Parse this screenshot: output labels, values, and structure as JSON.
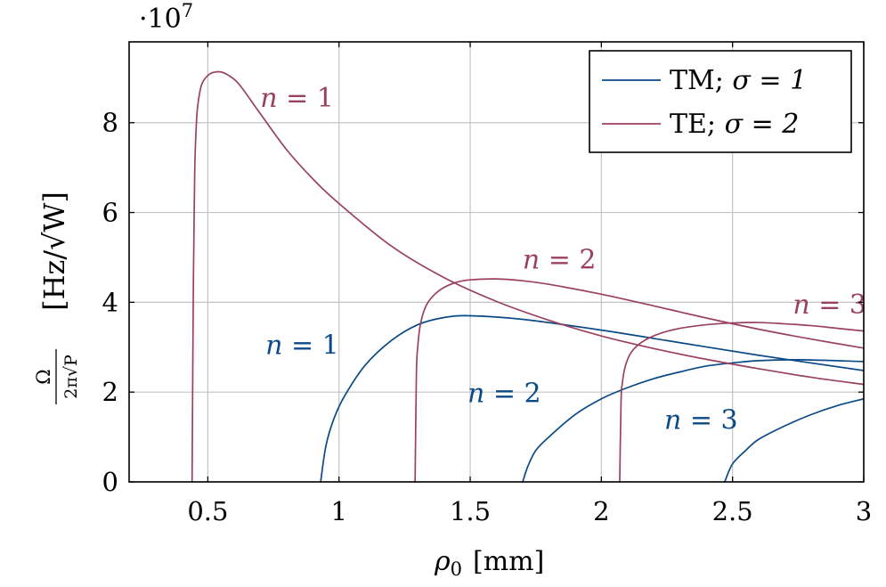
{
  "chart_data": {
    "type": "line",
    "exponent_label": "·10",
    "exponent_power": "7",
    "xlabel_symbol": "ρ",
    "xlabel_sub": "0",
    "xlabel_unit": "[mm]",
    "ylabel_num": "Ω",
    "ylabel_den": "2π√P",
    "ylabel_unit": "[Hz/√W]",
    "xlim": [
      0.2,
      3.0
    ],
    "ylim": [
      0,
      9.8
    ],
    "x_ticks": [
      {
        "value": 0.5,
        "label": "0.5"
      },
      {
        "value": 1,
        "label": "1"
      },
      {
        "value": 1.5,
        "label": "1.5"
      },
      {
        "value": 2,
        "label": "2"
      },
      {
        "value": 2.5,
        "label": "2.5"
      },
      {
        "value": 3,
        "label": "3"
      }
    ],
    "y_ticks": [
      {
        "value": 0,
        "label": "0"
      },
      {
        "value": 2,
        "label": "2"
      },
      {
        "value": 4,
        "label": "4"
      },
      {
        "value": 6,
        "label": "6"
      },
      {
        "value": 8,
        "label": "8"
      }
    ],
    "grid": true,
    "legend_position": "top-right",
    "colors": {
      "tm": "#0b4a87",
      "te": "#9a4160"
    },
    "series": [
      {
        "name": "TM; σ = 1",
        "mode": "TM",
        "n_label": "n = 1",
        "label_at": [
          0.86,
          2.85
        ],
        "x": [
          0.93,
          0.95,
          0.98,
          1.02,
          1.1,
          1.2,
          1.3,
          1.4,
          1.5,
          1.7,
          2.0,
          2.3,
          2.6,
          3.0
        ],
        "y": [
          0,
          0.8,
          1.4,
          1.9,
          2.6,
          3.15,
          3.5,
          3.66,
          3.7,
          3.62,
          3.38,
          3.1,
          2.82,
          2.48
        ]
      },
      {
        "name": "TM; σ = 1",
        "mode": "TM",
        "n_label": "n = 2",
        "label_at": [
          1.63,
          1.78
        ],
        "x": [
          1.7,
          1.72,
          1.75,
          1.8,
          1.9,
          2.0,
          2.1,
          2.2,
          2.3,
          2.4,
          2.5,
          2.6,
          2.75,
          3.0
        ],
        "y": [
          0,
          0.35,
          0.7,
          1.0,
          1.5,
          1.85,
          2.1,
          2.3,
          2.45,
          2.58,
          2.65,
          2.7,
          2.72,
          2.68
        ]
      },
      {
        "name": "TM; σ = 1",
        "mode": "TM",
        "n_label": "n = 3",
        "label_at": [
          2.38,
          1.18
        ],
        "x": [
          2.47,
          2.5,
          2.55,
          2.6,
          2.7,
          2.8,
          2.9,
          3.0
        ],
        "y": [
          0,
          0.4,
          0.7,
          0.95,
          1.25,
          1.5,
          1.7,
          1.85
        ]
      },
      {
        "name": "TE; σ = 2",
        "mode": "TE",
        "n_label": "n = 1",
        "label_at": [
          0.84,
          8.35
        ],
        "x": [
          0.44,
          0.445,
          0.45,
          0.455,
          0.46,
          0.47,
          0.48,
          0.5,
          0.52,
          0.55,
          0.58,
          0.62,
          0.7,
          0.8,
          0.9,
          1.0,
          1.2,
          1.4,
          1.6,
          1.8,
          2.0,
          2.2,
          2.4,
          2.6,
          2.8,
          3.0
        ],
        "y": [
          0,
          4.5,
          6.9,
          7.8,
          8.3,
          8.7,
          8.9,
          9.05,
          9.12,
          9.13,
          9.05,
          8.85,
          8.2,
          7.4,
          6.75,
          6.2,
          5.25,
          4.55,
          4.02,
          3.6,
          3.25,
          2.97,
          2.73,
          2.52,
          2.33,
          2.17
        ]
      },
      {
        "name": "TE; σ = 2",
        "mode": "TE",
        "n_label": "n = 2",
        "label_at": [
          1.84,
          4.75
        ],
        "x": [
          1.29,
          1.295,
          1.3,
          1.31,
          1.33,
          1.36,
          1.4,
          1.45,
          1.5,
          1.6,
          1.7,
          1.8,
          2.0,
          2.2,
          2.4,
          2.6,
          2.8,
          3.0
        ],
        "y": [
          0,
          2.4,
          3.0,
          3.5,
          3.9,
          4.15,
          4.33,
          4.45,
          4.5,
          4.52,
          4.48,
          4.4,
          4.18,
          3.92,
          3.65,
          3.4,
          3.18,
          2.98
        ]
      },
      {
        "name": "TE; σ = 2",
        "mode": "TE",
        "n_label": "n = 3",
        "label_at": [
          2.87,
          3.75
        ],
        "x": [
          2.07,
          2.075,
          2.08,
          2.09,
          2.11,
          2.14,
          2.18,
          2.23,
          2.3,
          2.4,
          2.5,
          2.6,
          2.7,
          2.8,
          2.9,
          3.0
        ],
        "y": [
          0,
          1.8,
          2.2,
          2.55,
          2.85,
          3.05,
          3.2,
          3.32,
          3.42,
          3.5,
          3.54,
          3.55,
          3.52,
          3.48,
          3.42,
          3.36
        ]
      }
    ],
    "legend": [
      {
        "mode": "TM",
        "label": "TM; ",
        "sigma": "σ = 1"
      },
      {
        "mode": "TE",
        "label": "TE; ",
        "sigma": "σ = 2"
      }
    ]
  }
}
